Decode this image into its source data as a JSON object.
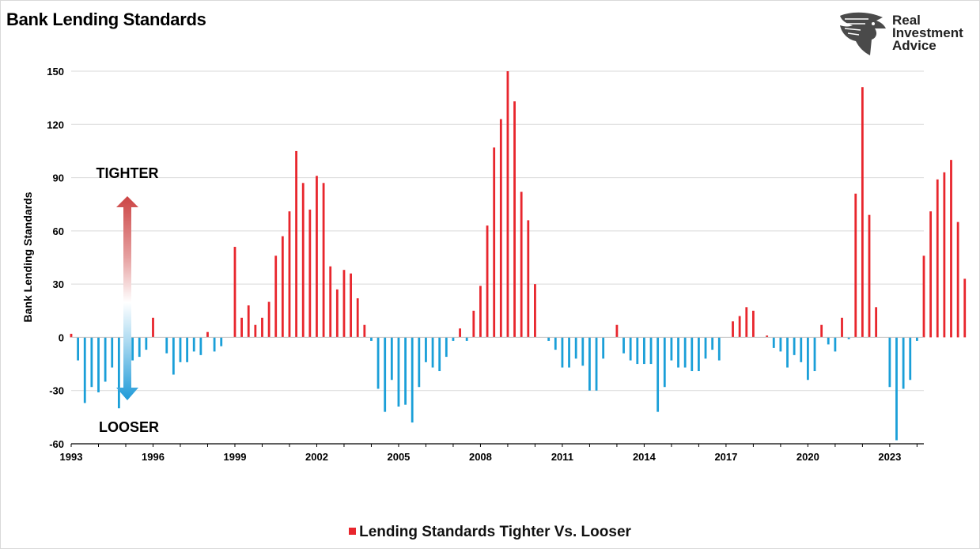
{
  "title": "Bank Lending Standards",
  "logo": {
    "lines": [
      "Real",
      "Investment",
      "Advice"
    ],
    "icon": "eagle-head-icon"
  },
  "colors": {
    "tighter": "#e8262d",
    "looser": "#1a9fd8",
    "grid": "#d9d9d9",
    "axis": "#000000"
  },
  "chart_data": {
    "type": "bar",
    "title": "Bank Lending Standards",
    "ylabel": "Bank Lending Standards",
    "xlabel": "",
    "ylim": [
      -60,
      150
    ],
    "yticks": [
      -60,
      -30,
      0,
      30,
      60,
      90,
      120,
      150
    ],
    "xlim": [
      1993,
      2024.25
    ],
    "xticks": [
      "1993",
      "1996",
      "1999",
      "2002",
      "2005",
      "2008",
      "2011",
      "2014",
      "2017",
      "2020",
      "2023"
    ],
    "grid": "horizontal",
    "frequency": "quarterly",
    "start_period": "1993-Q1",
    "annotations": {
      "up": "TIGHTER",
      "down": "LOOSER"
    },
    "legend": {
      "label": "Lending Standards Tighter Vs. Looser",
      "position": "bottom-center"
    },
    "series": [
      {
        "name": "Lending Standards Tighter Vs. Looser",
        "values": [
          2,
          -13,
          -37,
          -28,
          -31,
          -25,
          -17,
          -40,
          -15,
          -13,
          -11,
          -7,
          11,
          0,
          -9,
          -21,
          -14,
          -14,
          -8,
          -10,
          3,
          -8,
          -5,
          0,
          51,
          11,
          18,
          7,
          11,
          20,
          46,
          57,
          71,
          105,
          87,
          72,
          91,
          87,
          40,
          27,
          38,
          36,
          22,
          7,
          -2,
          -29,
          -42,
          -24,
          -39,
          -38,
          -48,
          -28,
          -14,
          -17,
          -19,
          -11,
          -2,
          5,
          -2,
          15,
          29,
          63,
          107,
          123,
          150,
          133,
          82,
          66,
          30,
          0,
          -2,
          -7,
          -17,
          -17,
          -12,
          -16,
          -30,
          -30,
          -12,
          0,
          7,
          -9,
          -13,
          -15,
          -15,
          -15,
          -42,
          -28,
          -13,
          -17,
          -17,
          -19,
          -19,
          -12,
          -7,
          -13,
          0,
          9,
          12,
          17,
          15,
          0,
          1,
          -6,
          -8,
          -17,
          -10,
          -14,
          -24,
          -19,
          7,
          -4,
          -8,
          11,
          -1,
          81,
          141,
          69,
          17,
          0,
          -28,
          -58,
          -29,
          -24,
          -2,
          46,
          71,
          89,
          93,
          100,
          65,
          33
        ]
      }
    ]
  }
}
